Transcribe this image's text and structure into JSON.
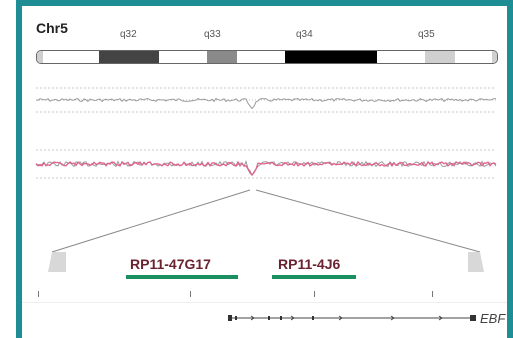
{
  "chromosome": {
    "label": "Chr5",
    "bands": [
      "q32",
      "q33",
      "q34",
      "q35"
    ]
  },
  "clones": [
    "RP11-47G17",
    "RP11-4J6"
  ],
  "gene": {
    "label": "EBF"
  },
  "colors": {
    "frame": "#1f8d94",
    "clone_bar": "#1a8f60",
    "clone_label": "#6a2230",
    "trace": "#e0608a"
  }
}
